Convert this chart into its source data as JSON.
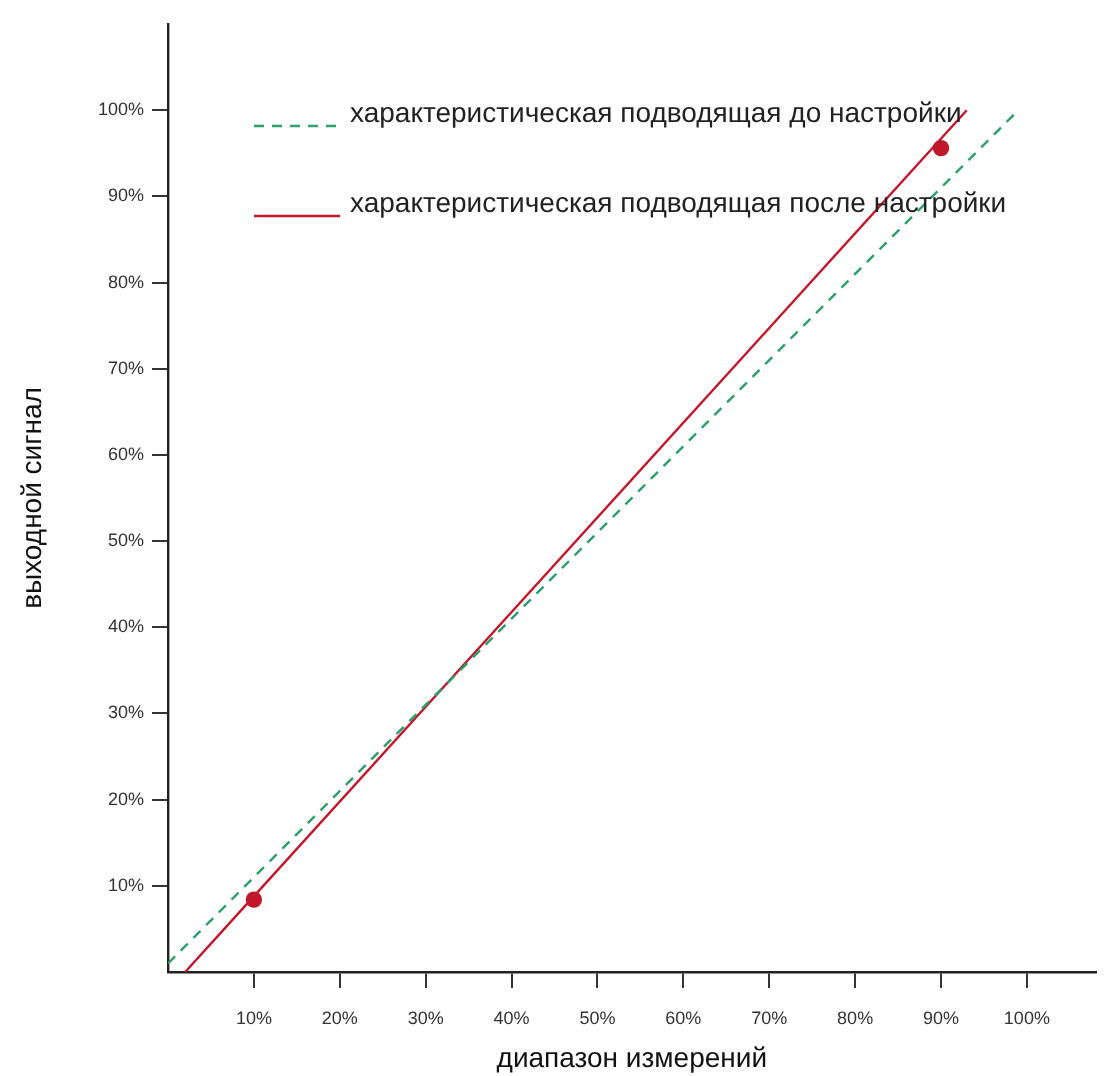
{
  "chart_data": {
    "type": "line",
    "xlabel": "диапазон измерений",
    "ylabel": "выходной сигнал",
    "xlim": [
      0,
      108
    ],
    "ylim": [
      0,
      110
    ],
    "xticks": [
      {
        "value": 10,
        "label": "10%"
      },
      {
        "value": 20,
        "label": "20%"
      },
      {
        "value": 30,
        "label": "30%"
      },
      {
        "value": 40,
        "label": "40%"
      },
      {
        "value": 50,
        "label": "50%"
      },
      {
        "value": 60,
        "label": "60%"
      },
      {
        "value": 70,
        "label": "70%"
      },
      {
        "value": 80,
        "label": "80%"
      },
      {
        "value": 90,
        "label": "90%"
      },
      {
        "value": 100,
        "label": "100%"
      }
    ],
    "yticks": [
      {
        "value": 10,
        "label": "10%"
      },
      {
        "value": 20,
        "label": "20%"
      },
      {
        "value": 30,
        "label": "30%"
      },
      {
        "value": 40,
        "label": "40%"
      },
      {
        "value": 50,
        "label": "50%"
      },
      {
        "value": 60,
        "label": "60%"
      },
      {
        "value": 70,
        "label": "70%"
      },
      {
        "value": 80,
        "label": "80%"
      },
      {
        "value": 90,
        "label": "90%"
      },
      {
        "value": 100,
        "label": "100%"
      }
    ],
    "grid": false,
    "legend": "top",
    "marker": "none",
    "series": [
      {
        "name": "характеристическая подводящая до настройки",
        "color": "#2e9e6a",
        "line_style": "dashed",
        "x": [
          0,
          99
        ],
        "values": [
          1,
          100
        ]
      },
      {
        "name": "характеристическая подводящая после настройки",
        "color": "#c0182a",
        "line_style": "solid",
        "x": [
          2,
          93
        ],
        "values": [
          0,
          100
        ]
      },
      {
        "type": "scatter",
        "color": "#c0182a",
        "marker": "circle",
        "x": [
          10,
          90
        ],
        "values": [
          8.4,
          95.6
        ]
      }
    ]
  }
}
